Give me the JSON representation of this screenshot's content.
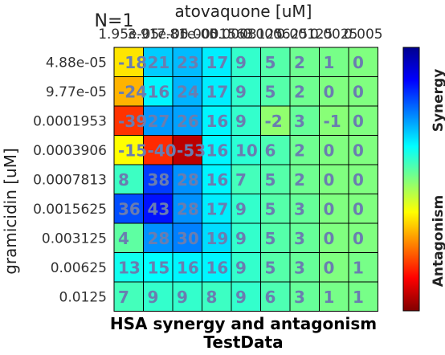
{
  "chart_data": {
    "type": "heatmap",
    "top_label": "N=1",
    "title": "HSA synergy and antagonism",
    "subtitle": "TestData",
    "xlabel": "atovaquone [uM]",
    "ylabel": "gramicidin [uM]",
    "x_tick_labels": [
      "1.95e-05",
      "3.91e-05",
      "7.81e-05",
      "0.0001563",
      "0.0003125",
      "0.000625",
      "0.00125",
      "0.0025",
      "0.005"
    ],
    "y_tick_labels": [
      "4.88e-05",
      "9.77e-05",
      "0.0001953",
      "0.0003906",
      "0.0007813",
      "0.0015625",
      "0.003125",
      "0.00625",
      "0.0125"
    ],
    "values": [
      [
        -18,
        21,
        23,
        17,
        9,
        5,
        2,
        1,
        0
      ],
      [
        -24,
        16,
        24,
        17,
        9,
        5,
        2,
        0,
        0
      ],
      [
        -39,
        27,
        26,
        16,
        9,
        -2,
        3,
        -1,
        0
      ],
      [
        -15,
        -40,
        -53,
        16,
        10,
        6,
        2,
        0,
        0
      ],
      [
        8,
        38,
        28,
        16,
        7,
        5,
        2,
        0,
        0
      ],
      [
        36,
        43,
        28,
        17,
        9,
        5,
        3,
        0,
        0
      ],
      [
        4,
        28,
        30,
        19,
        9,
        5,
        3,
        0,
        0
      ],
      [
        13,
        15,
        16,
        16,
        9,
        5,
        3,
        0,
        1
      ],
      [
        7,
        9,
        9,
        8,
        9,
        6,
        3,
        1,
        1
      ]
    ],
    "colorbar": {
      "range": [
        -60,
        60
      ],
      "labels": [
        "Synergy",
        "Antagonism"
      ],
      "label_color": "#222222"
    },
    "colors": {
      "value_text": "#6a7db0",
      "grid": "#000000"
    }
  }
}
